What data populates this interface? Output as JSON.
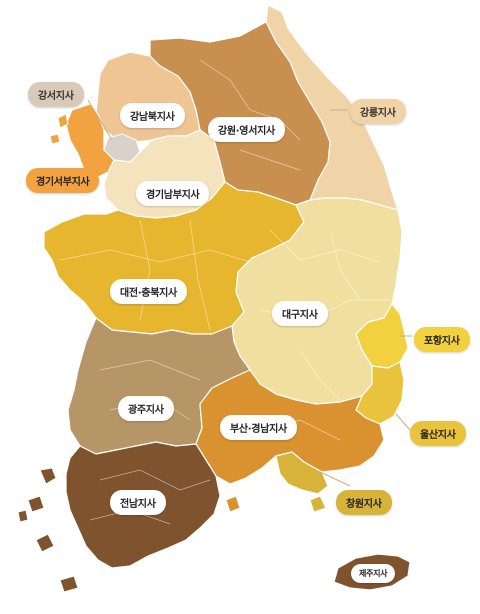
{
  "map": {
    "regions": [
      {
        "id": "gangseo",
        "label": "강서지사",
        "color": "#d9c9b8"
      },
      {
        "id": "gangnambuk",
        "label": "강남북지사",
        "color": "#efc594"
      },
      {
        "id": "gangwon-yeongseo",
        "label": "강원·영서지사",
        "color": "#c98f4f"
      },
      {
        "id": "gangneung",
        "label": "강릉지사",
        "color": "#f1d3a8"
      },
      {
        "id": "gyeonggi-seobu",
        "label": "경기서부지사",
        "color": "#f2a33f"
      },
      {
        "id": "gyeonggi-nambu",
        "label": "경기남부지사",
        "color": "#f5e3bd"
      },
      {
        "id": "daejeon-chungbuk",
        "label": "대전·충북지사",
        "color": "#e6b62e"
      },
      {
        "id": "daegu",
        "label": "대구지사",
        "color": "#f0df9e"
      },
      {
        "id": "pohang",
        "label": "포항지사",
        "color": "#f2d13f"
      },
      {
        "id": "gwangju",
        "label": "광주지사",
        "color": "#b69566"
      },
      {
        "id": "busan-gyeongnam",
        "label": "부산·경남지사",
        "color": "#d9922f"
      },
      {
        "id": "ulsan",
        "label": "울산지사",
        "color": "#e9c33c"
      },
      {
        "id": "changwon",
        "label": "창원지사",
        "color": "#d8b33a"
      },
      {
        "id": "jeonnam",
        "label": "전남지사",
        "color": "#80532f"
      },
      {
        "id": "jeju",
        "label": "제주지사",
        "color": "#80532f"
      }
    ]
  }
}
